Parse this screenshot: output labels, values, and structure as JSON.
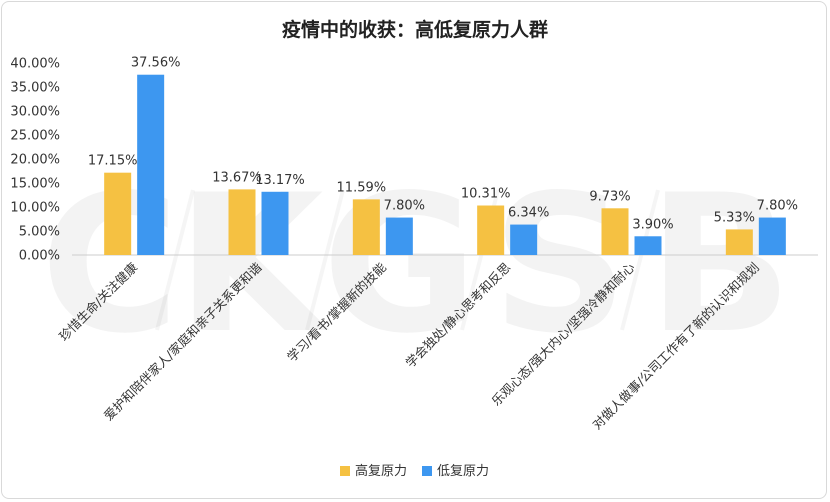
{
  "chart_data": {
    "type": "bar",
    "title": "疫情中的收获：高低复原力人群",
    "categories": [
      "珍惜生命/关注健康",
      "爱护和陪伴家人/家庭和亲子关系更和谐",
      "学习/看书/掌握新的技能",
      "学会独处/静心思考和反思",
      "乐观心态/强大内心/坚强冷静和耐心",
      "对做人做事/公司工作有了新的认识和规划"
    ],
    "series": [
      {
        "name": "高复原力",
        "color": "#F5C142",
        "values": [
          17.15,
          13.67,
          11.59,
          10.31,
          9.73,
          5.33
        ],
        "labels": [
          "17.15%",
          "13.67%",
          "11.59%",
          "10.31%",
          "9.73%",
          "5.33%"
        ]
      },
      {
        "name": "低复原力",
        "color": "#3D97F0",
        "values": [
          37.56,
          13.17,
          7.8,
          6.34,
          3.9,
          7.8
        ],
        "labels": [
          "37.56%",
          "13.17%",
          "7.80%",
          "6.34%",
          "3.90%",
          "7.80%"
        ]
      }
    ],
    "y_ticks": [
      "0.00%",
      "5.00%",
      "10.00%",
      "15.00%",
      "20.00%",
      "25.00%",
      "30.00%",
      "35.00%",
      "40.00%"
    ],
    "ylim": [
      0,
      40
    ],
    "grid": false,
    "legend_position": "bottom"
  },
  "watermark": [
    "C",
    "K",
    "G",
    "S",
    "B"
  ]
}
